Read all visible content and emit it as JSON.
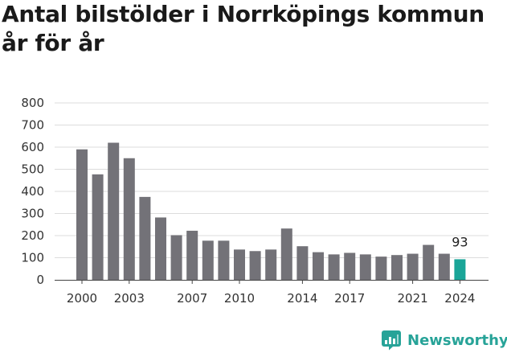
{
  "chart_data": {
    "type": "bar",
    "title": "Antal bilstölder i Norrköpings kommun år för år",
    "x": [
      2000,
      2001,
      2002,
      2003,
      2004,
      2005,
      2006,
      2007,
      2008,
      2009,
      2010,
      2011,
      2012,
      2013,
      2014,
      2015,
      2016,
      2017,
      2018,
      2019,
      2020,
      2021,
      2022,
      2023,
      2024
    ],
    "values": [
      590,
      477,
      620,
      550,
      375,
      282,
      202,
      222,
      177,
      177,
      137,
      130,
      137,
      232,
      152,
      125,
      115,
      122,
      115,
      105,
      112,
      118,
      158,
      118,
      93
    ],
    "xticks": [
      2000,
      2003,
      2007,
      2010,
      2014,
      2017,
      2021,
      2024
    ],
    "yticks": [
      0,
      100,
      200,
      300,
      400,
      500,
      600,
      700,
      800
    ],
    "ylim": [
      0,
      800
    ],
    "grid": true,
    "highlight": {
      "x": 2024,
      "label": "93"
    },
    "colors": {
      "bar": "#737278",
      "highlight": "#1aa598",
      "grid": "#dcdcdc",
      "axis": "#444444"
    }
  },
  "brand": {
    "name": "Newsworthy",
    "color": "#27a398"
  }
}
